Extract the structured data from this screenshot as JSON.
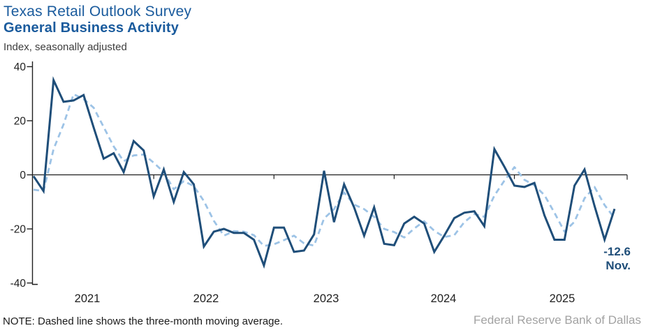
{
  "header": {
    "title": "Texas Retail Outlook Survey",
    "subtitle": "General Business Activity",
    "axis_note": "Index, seasonally adjusted"
  },
  "annotation": {
    "value_label": "-12.6",
    "month_label": "Nov."
  },
  "footer": {
    "note": "NOTE: Dashed line shows the three-month moving average.",
    "attribution": "Federal Reserve Bank of Dallas"
  },
  "colors": {
    "title_blue": "#1a5b9d",
    "line_navy": "#1f4e79",
    "moving_average_light_blue": "#9dc3e6",
    "axis_black": "#1f1f1f",
    "attribution_gray": "#a2a2a2"
  },
  "chart_data": {
    "type": "line",
    "title": "Texas Retail Outlook Survey — General Business Activity",
    "ylabel": "Index, seasonally adjusted",
    "ylim": [
      -40,
      40
    ],
    "yticks": [
      40,
      20,
      0,
      -20,
      -40
    ],
    "x_tick_labels": [
      "2021",
      "2022",
      "2023",
      "2024",
      "2025"
    ],
    "grid": false,
    "legend": "none",
    "frequency": "monthly",
    "start": {
      "year": 2021,
      "month": 1
    },
    "end": {
      "year": 2025,
      "month": 11
    },
    "series": [
      {
        "name": "General Business Activity index (monthly)",
        "style": "solid",
        "values": [
          -0.5,
          -6,
          35,
          27,
          27.5,
          29.5,
          17.5,
          6,
          8,
          1,
          12.5,
          9,
          -8,
          2,
          -10,
          1,
          -3.5,
          -26.5,
          -21,
          -20,
          -21.5,
          -21.5,
          -24,
          -33.5,
          -19.5,
          -19.5,
          -28.5,
          -28,
          -22,
          1.5,
          -17.5,
          -3.5,
          -12,
          -22.5,
          -12,
          -25.5,
          -26,
          -18,
          -15.5,
          -18,
          -28.5,
          -22.5,
          -16,
          -14,
          -13.5,
          -19,
          9.5,
          3,
          -4,
          -4.5,
          -3,
          -15,
          -24,
          -24,
          -4,
          2,
          -11.5,
          -24,
          -12.6
        ]
      },
      {
        "name": "Three-month moving average",
        "style": "dashed",
        "definition": "3-month moving average of the monthly series",
        "visible_start_values": [
          -5.5,
          -6
        ]
      }
    ],
    "last_point": {
      "value": -12.6,
      "month_label": "Nov."
    }
  }
}
